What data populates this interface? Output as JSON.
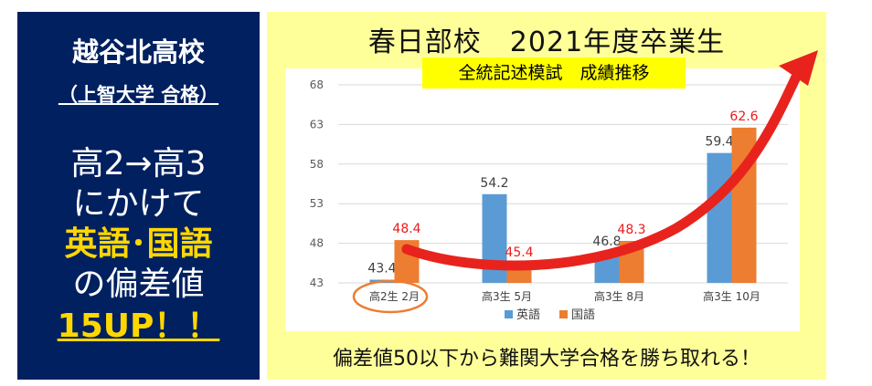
{
  "left_panel": {
    "school": "越谷北高校",
    "acceptance": "（上智大学 合格）",
    "line1": "高2→高3",
    "line2": "にかけて",
    "line3": "英語･国語",
    "line4": "の偏差値",
    "line5": "15UP！！"
  },
  "right_panel": {
    "title": "春日部校　2021年度卒業生",
    "footer": "偏差値50以下から難関大学合格を勝ち取れる！"
  },
  "colors": {
    "navy": "#002060",
    "panel_yellow": "#FFFF99",
    "highlight_yellow": "#FFFF00",
    "english_blue": "#5B9BD5",
    "japanese_orange": "#ED7D31",
    "arrow_red": "#E8231D",
    "label_red": "#E81C1C"
  },
  "chart_data": {
    "type": "bar",
    "title": "全統記述模試　成績推移",
    "categories": [
      "高2生 2月",
      "高3生 5月",
      "高3生 8月",
      "高3生 10月"
    ],
    "series": [
      {
        "name": "英語",
        "values": [
          43.4,
          54.2,
          46.8,
          59.4
        ]
      },
      {
        "name": "国語",
        "values": [
          48.4,
          45.4,
          48.3,
          62.6
        ]
      }
    ],
    "yticks": [
      43,
      48,
      53,
      58,
      63,
      68
    ],
    "ylim": [
      43,
      68
    ],
    "legend_position": "bottom",
    "grid": "horizontal"
  }
}
